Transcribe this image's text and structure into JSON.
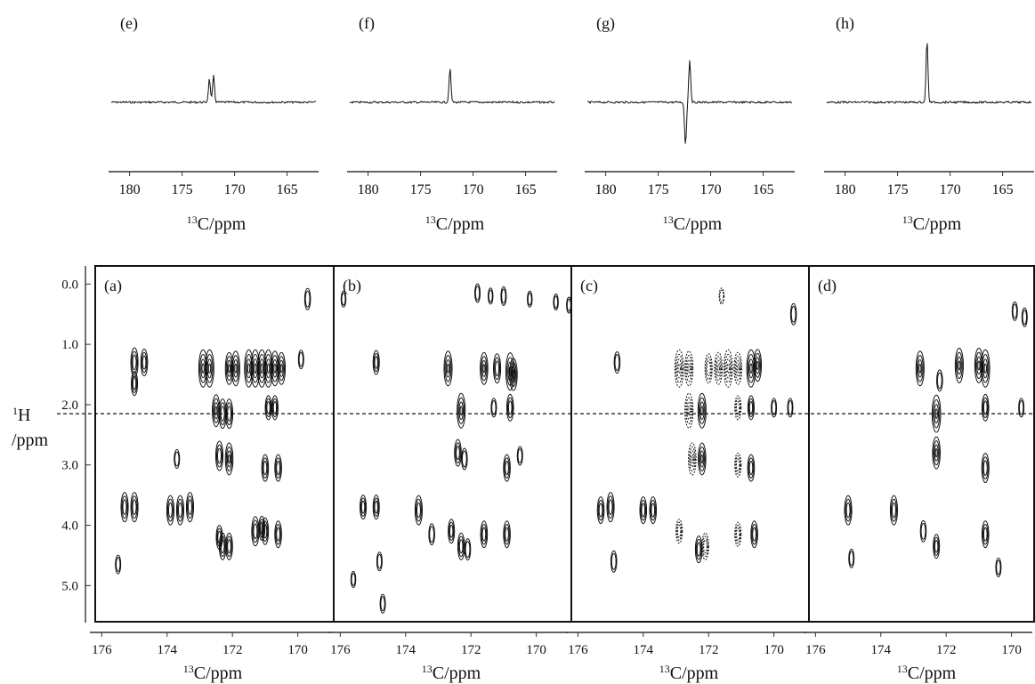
{
  "chart_data": [
    {
      "type": "line",
      "panel_label": "(e)",
      "xlabel_sup": "13",
      "xlabel_main": "C/ppm",
      "x_ticks": [
        180,
        175,
        170,
        165
      ],
      "xlim": [
        182,
        162
      ],
      "series": [
        {
          "peaks": [
            {
              "x": 172.4,
              "y": 0.55
            },
            {
              "x": 172.0,
              "y": 0.62
            }
          ]
        }
      ]
    },
    {
      "type": "line",
      "panel_label": "(f)",
      "xlabel_sup": "13",
      "xlabel_main": "C/ppm",
      "x_ticks": [
        180,
        175,
        170,
        165
      ],
      "xlim": [
        182,
        162
      ],
      "series": [
        {
          "peaks": [
            {
              "x": 172.2,
              "y": 0.8
            }
          ]
        }
      ]
    },
    {
      "type": "line",
      "panel_label": "(g)",
      "xlabel_sup": "13",
      "xlabel_main": "C/ppm",
      "x_ticks": [
        180,
        175,
        170,
        165
      ],
      "xlim": [
        182,
        162
      ],
      "series": [
        {
          "peaks": [
            {
              "x": 172.4,
              "y": -1.0
            },
            {
              "x": 172.0,
              "y": 1.0
            }
          ]
        }
      ]
    },
    {
      "type": "line",
      "panel_label": "(h)",
      "xlabel_sup": "13",
      "xlabel_main": "C/ppm",
      "x_ticks": [
        180,
        175,
        170,
        165
      ],
      "xlim": [
        182,
        162
      ],
      "series": [
        {
          "peaks": [
            {
              "x": 172.2,
              "y": 1.45
            }
          ]
        }
      ]
    },
    {
      "type": "heatmap",
      "shared_ylabel_sup": "1",
      "shared_ylabel_main": "H",
      "shared_ylabel_sub": "/ppm",
      "y_ticks": [
        "0.0",
        "1.0",
        "2.0",
        "3.0",
        "4.0",
        "5.0"
      ],
      "y_tick_values": [
        0,
        1,
        2,
        3,
        4,
        5
      ],
      "ylim": [
        -0.3,
        5.6
      ],
      "xlim": [
        176.2,
        168.9
      ],
      "x_ticks": [
        176,
        174,
        172,
        170
      ],
      "dashed_line_y": 2.15,
      "panels": [
        {
          "panel_label": "(a)",
          "xlabel_sup": "13",
          "xlabel_main": "C/ppm",
          "peaks": [
            [
              175.0,
              1.3,
              0.7
            ],
            [
              174.7,
              1.3,
              0.6
            ],
            [
              175.0,
              1.65,
              0.5
            ],
            [
              172.9,
              1.4,
              1.0
            ],
            [
              172.7,
              1.4,
              1.0
            ],
            [
              172.1,
              1.4,
              0.8
            ],
            [
              171.9,
              1.4,
              0.9
            ],
            [
              171.5,
              1.4,
              1.0
            ],
            [
              171.3,
              1.4,
              1.0
            ],
            [
              171.1,
              1.4,
              1.0
            ],
            [
              170.9,
              1.4,
              1.0
            ],
            [
              170.7,
              1.4,
              0.9
            ],
            [
              170.5,
              1.4,
              0.8
            ],
            [
              169.7,
              0.25,
              0.4
            ],
            [
              169.9,
              1.25,
              0.3
            ],
            [
              172.5,
              2.1,
              0.8
            ],
            [
              172.3,
              2.15,
              0.7
            ],
            [
              172.1,
              2.15,
              0.7
            ],
            [
              170.9,
              2.05,
              0.5
            ],
            [
              170.7,
              2.05,
              0.5
            ],
            [
              172.4,
              2.85,
              0.7
            ],
            [
              172.1,
              2.9,
              0.8
            ],
            [
              171.0,
              3.05,
              0.6
            ],
            [
              170.6,
              3.05,
              0.6
            ],
            [
              173.7,
              2.9,
              0.3
            ],
            [
              175.3,
              3.7,
              0.7
            ],
            [
              175.0,
              3.7,
              0.7
            ],
            [
              173.9,
              3.75,
              0.7
            ],
            [
              173.6,
              3.75,
              0.7
            ],
            [
              173.3,
              3.7,
              0.7
            ],
            [
              172.4,
              4.2,
              0.5
            ],
            [
              172.3,
              4.35,
              0.6
            ],
            [
              172.1,
              4.35,
              0.6
            ],
            [
              171.3,
              4.1,
              0.7
            ],
            [
              171.0,
              4.1,
              0.6
            ],
            [
              170.6,
              4.15,
              0.6
            ],
            [
              171.1,
              4.05,
              0.5
            ],
            [
              175.5,
              4.65,
              0.3
            ]
          ]
        },
        {
          "panel_label": "(b)",
          "xlabel_sup": "13",
          "xlabel_main": "C/ppm",
          "peaks": [
            [
              172.7,
              1.4,
              0.9
            ],
            [
              171.6,
              1.4,
              0.8
            ],
            [
              171.2,
              1.4,
              0.7
            ],
            [
              170.8,
              1.45,
              1.0
            ],
            [
              170.7,
              1.5,
              0.8
            ],
            [
              174.9,
              1.3,
              0.5
            ],
            [
              172.3,
              2.1,
              0.9
            ],
            [
              170.8,
              2.05,
              0.6
            ],
            [
              171.3,
              2.05,
              0.3
            ],
            [
              172.4,
              2.8,
              0.6
            ],
            [
              172.2,
              2.9,
              0.4
            ],
            [
              170.9,
              3.05,
              0.6
            ],
            [
              170.5,
              2.85,
              0.3
            ],
            [
              175.3,
              3.7,
              0.5
            ],
            [
              174.9,
              3.7,
              0.5
            ],
            [
              173.6,
              3.75,
              0.7
            ],
            [
              173.2,
              4.15,
              0.4
            ],
            [
              172.6,
              4.1,
              0.5
            ],
            [
              171.6,
              4.15,
              0.6
            ],
            [
              170.9,
              4.15,
              0.6
            ],
            [
              172.3,
              4.35,
              0.6
            ],
            [
              172.1,
              4.4,
              0.4
            ],
            [
              174.8,
              4.6,
              0.3
            ],
            [
              171.8,
              0.15,
              0.3
            ],
            [
              171.4,
              0.2,
              0.2
            ],
            [
              171.0,
              0.2,
              0.3
            ],
            [
              170.2,
              0.25,
              0.2
            ],
            [
              169.4,
              0.3,
              0.2
            ],
            [
              169.0,
              0.35,
              0.2
            ],
            [
              175.9,
              0.25,
              0.2
            ],
            [
              174.7,
              5.3,
              0.3
            ],
            [
              175.6,
              4.9,
              0.2
            ]
          ]
        },
        {
          "panel_label": "(c)",
          "xlabel_sup": "13",
          "xlabel_main": "C/ppm",
          "peaks": [
            [
              172.9,
              1.4,
              1.0
            ],
            [
              172.6,
              1.4,
              0.9
            ],
            [
              172.0,
              1.4,
              0.7
            ],
            [
              171.7,
              1.4,
              0.8
            ],
            [
              171.4,
              1.4,
              1.0
            ],
            [
              171.1,
              1.4,
              0.8
            ],
            [
              170.7,
              1.4,
              1.0
            ],
            [
              170.5,
              1.35,
              0.8
            ],
            [
              174.8,
              1.3,
              0.4
            ],
            [
              169.4,
              0.5,
              0.4
            ],
            [
              171.6,
              0.2,
              0.2
            ],
            [
              172.6,
              2.1,
              0.9
            ],
            [
              172.2,
              2.1,
              0.9
            ],
            [
              171.1,
              2.05,
              0.5
            ],
            [
              170.7,
              2.05,
              0.5
            ],
            [
              170.0,
              2.05,
              0.3
            ],
            [
              169.5,
              2.05,
              0.3
            ],
            [
              172.5,
              2.9,
              0.8
            ],
            [
              172.2,
              2.9,
              0.8
            ],
            [
              171.1,
              3.0,
              0.5
            ],
            [
              170.7,
              3.05,
              0.6
            ],
            [
              175.3,
              3.75,
              0.6
            ],
            [
              175.0,
              3.7,
              0.7
            ],
            [
              174.0,
              3.75,
              0.6
            ],
            [
              173.7,
              3.75,
              0.6
            ],
            [
              172.9,
              4.1,
              0.5
            ],
            [
              172.3,
              4.4,
              0.6
            ],
            [
              172.1,
              4.35,
              0.6
            ],
            [
              171.1,
              4.15,
              0.5
            ],
            [
              170.6,
              4.15,
              0.6
            ],
            [
              174.9,
              4.6,
              0.4
            ]
          ]
        },
        {
          "panel_label": "(d)",
          "xlabel_sup": "13",
          "xlabel_main": "C/ppm",
          "peaks": [
            [
              172.8,
              1.4,
              0.9
            ],
            [
              171.6,
              1.35,
              0.9
            ],
            [
              171.0,
              1.35,
              0.9
            ],
            [
              170.8,
              1.4,
              1.0
            ],
            [
              172.2,
              1.6,
              0.4
            ],
            [
              169.9,
              0.45,
              0.3
            ],
            [
              169.6,
              0.55,
              0.3
            ],
            [
              172.3,
              2.15,
              1.0
            ],
            [
              170.8,
              2.05,
              0.6
            ],
            [
              169.7,
              2.05,
              0.3
            ],
            [
              172.3,
              2.8,
              0.8
            ],
            [
              170.8,
              3.05,
              0.7
            ],
            [
              175.0,
              3.75,
              0.7
            ],
            [
              173.6,
              3.75,
              0.7
            ],
            [
              172.7,
              4.1,
              0.4
            ],
            [
              170.8,
              4.15,
              0.6
            ],
            [
              172.3,
              4.35,
              0.5
            ],
            [
              174.9,
              4.55,
              0.3
            ],
            [
              170.4,
              4.7,
              0.3
            ]
          ]
        }
      ]
    }
  ]
}
